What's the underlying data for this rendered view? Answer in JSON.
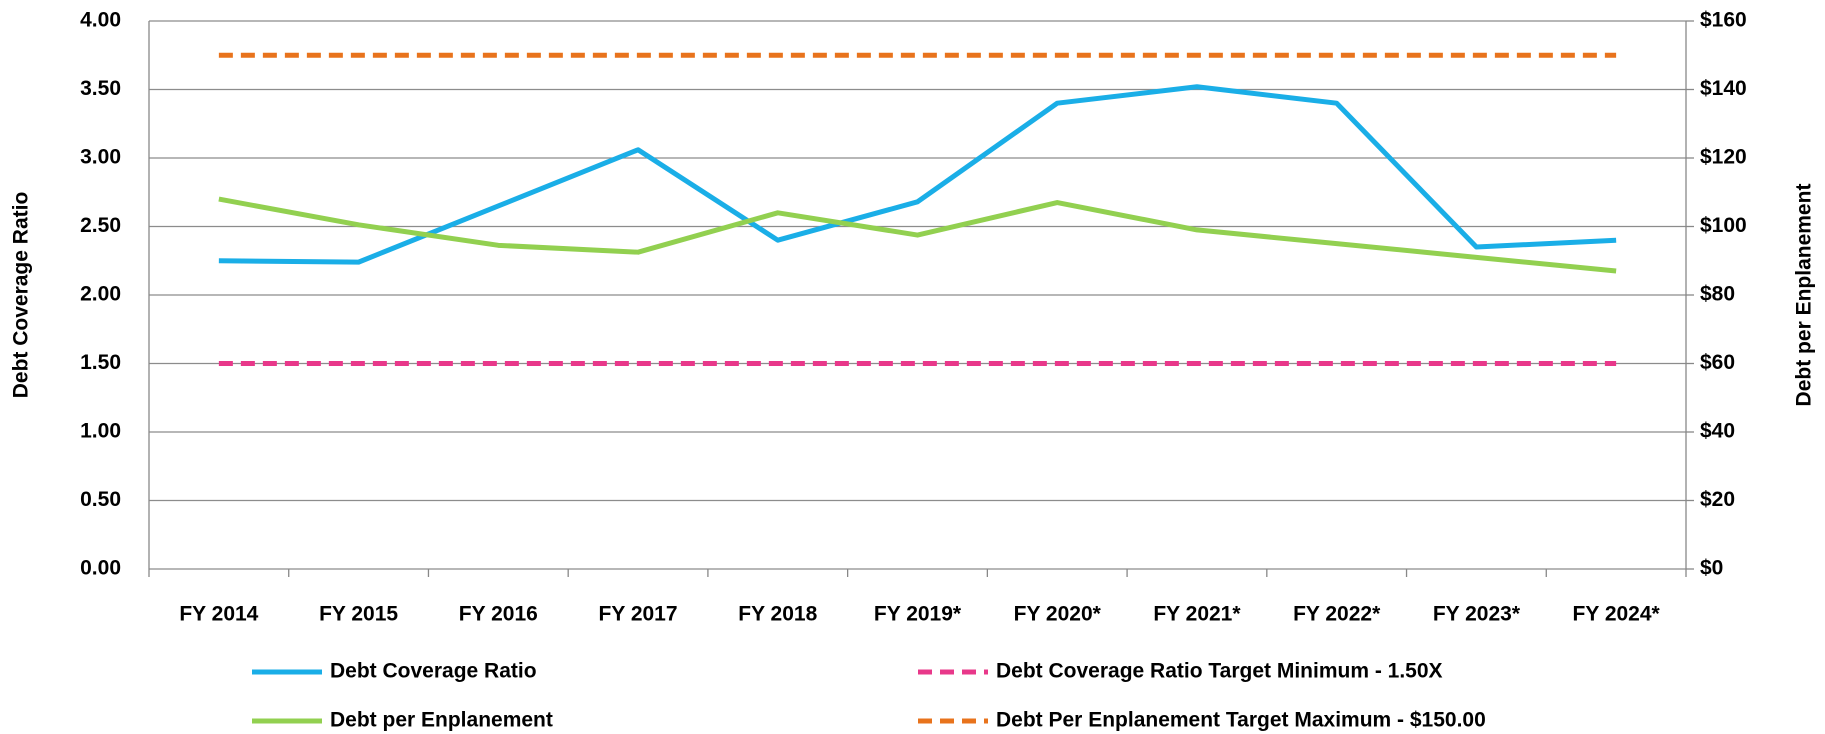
{
  "chart_data": {
    "type": "line",
    "ylabel": "Debt Coverage Ratio",
    "y2label": "Debt per Enplanement",
    "categories": [
      "FY 2014",
      "FY 2015",
      "FY 2016",
      "FY 2017",
      "FY 2018",
      "FY 2019*",
      "FY 2020*",
      "FY 2021*",
      "FY 2022*",
      "FY 2023*",
      "FY 2024*"
    ],
    "series": [
      {
        "name": "Debt Coverage Ratio",
        "color": "#1aaee7",
        "style": "solid",
        "values": [
          2.25,
          2.24,
          2.65,
          3.06,
          2.4,
          2.68,
          3.4,
          3.52,
          3.4,
          2.35,
          2.4
        ]
      },
      {
        "name": "Debt per Enplanement",
        "color": "#92d050",
        "style": "solid",
        "axis": "y2",
        "values": [
          108,
          100.5,
          94.5,
          92.5,
          104,
          97.5,
          107,
          99,
          95,
          91,
          87
        ]
      },
      {
        "name": "Debt Coverage Ratio Target Minimum - 1.50X",
        "color": "#e8388a",
        "style": "dashed",
        "values": [
          1.5,
          1.5,
          1.5,
          1.5,
          1.5,
          1.5,
          1.5,
          1.5,
          1.5,
          1.5,
          1.5
        ]
      },
      {
        "name": "Debt Per Enplanement Target Maximum - $150.00",
        "color": "#e8731c",
        "style": "dashed",
        "axis": "y2",
        "values": [
          150,
          150,
          150,
          150,
          150,
          150,
          150,
          150,
          150,
          150,
          150
        ]
      }
    ],
    "ylim": [
      0,
      4
    ],
    "yticks": [
      {
        "value": 0,
        "label": "0.00"
      },
      {
        "value": 0.5,
        "label": "0.50"
      },
      {
        "value": 1,
        "label": "1.00"
      },
      {
        "value": 1.5,
        "label": "1.50"
      },
      {
        "value": 2,
        "label": "2.00"
      },
      {
        "value": 2.5,
        "label": "2.50"
      },
      {
        "value": 3,
        "label": "3.00"
      },
      {
        "value": 3.5,
        "label": "3.50"
      },
      {
        "value": 4,
        "label": "4.00"
      }
    ],
    "y2lim": [
      0,
      160
    ],
    "y2ticks": [
      {
        "value": 0,
        "label": "$0"
      },
      {
        "value": 20,
        "label": "$20"
      },
      {
        "value": 40,
        "label": "$40"
      },
      {
        "value": 60,
        "label": "$60"
      },
      {
        "value": 80,
        "label": "$80"
      },
      {
        "value": 100,
        "label": "$100"
      },
      {
        "value": 120,
        "label": "$120"
      },
      {
        "value": 140,
        "label": "$140"
      },
      {
        "value": 160,
        "label": "$160"
      }
    ],
    "grid": true
  }
}
